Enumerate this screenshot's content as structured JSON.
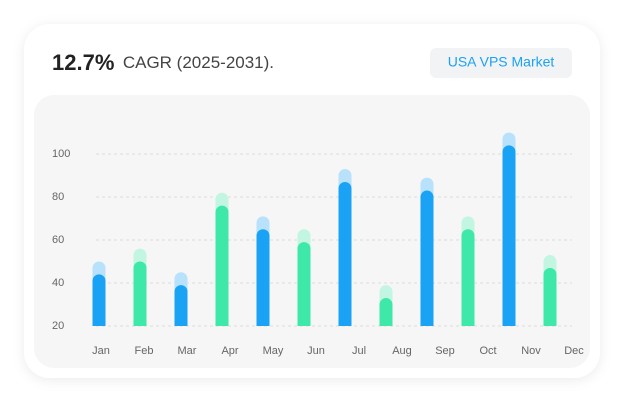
{
  "chart_data": {
    "type": "bar",
    "title": "12.7%",
    "subtitle": "CAGR (2025-2031).",
    "badge": "USA VPS Market",
    "categories": [
      "Jan",
      "Feb",
      "Mar",
      "Apr",
      "May",
      "Jun",
      "Jul",
      "Aug",
      "Sep",
      "Oct",
      "Nov",
      "Dec"
    ],
    "series": [
      {
        "colors": [
          "#1aa3f5",
          "#3de8a8",
          "#1aa3f5",
          "#3de8a8",
          "#1aa3f5",
          "#3de8a8",
          "#1aa3f5",
          "#3de8a8",
          "#1aa3f5",
          "#3de8a8",
          "#1aa3f5",
          "#3de8a8"
        ],
        "values": [
          44,
          50,
          39,
          76,
          65,
          59,
          87,
          33,
          83,
          65,
          104,
          47
        ]
      },
      {
        "colors": [
          "#b8e2fb",
          "#c2f6e2",
          "#b8e2fb",
          "#c2f6e2",
          "#b8e2fb",
          "#c2f6e2",
          "#b8e2fb",
          "#c2f6e2",
          "#b8e2fb",
          "#c2f6e2",
          "#b8e2fb",
          "#c2f6e2"
        ],
        "values": [
          6,
          6,
          6,
          6,
          6,
          6,
          6,
          6,
          6,
          6,
          6,
          6
        ]
      }
    ],
    "ylim": [
      20,
      110
    ],
    "yticks": [
      20,
      40,
      60,
      80,
      100
    ],
    "grid": true
  }
}
